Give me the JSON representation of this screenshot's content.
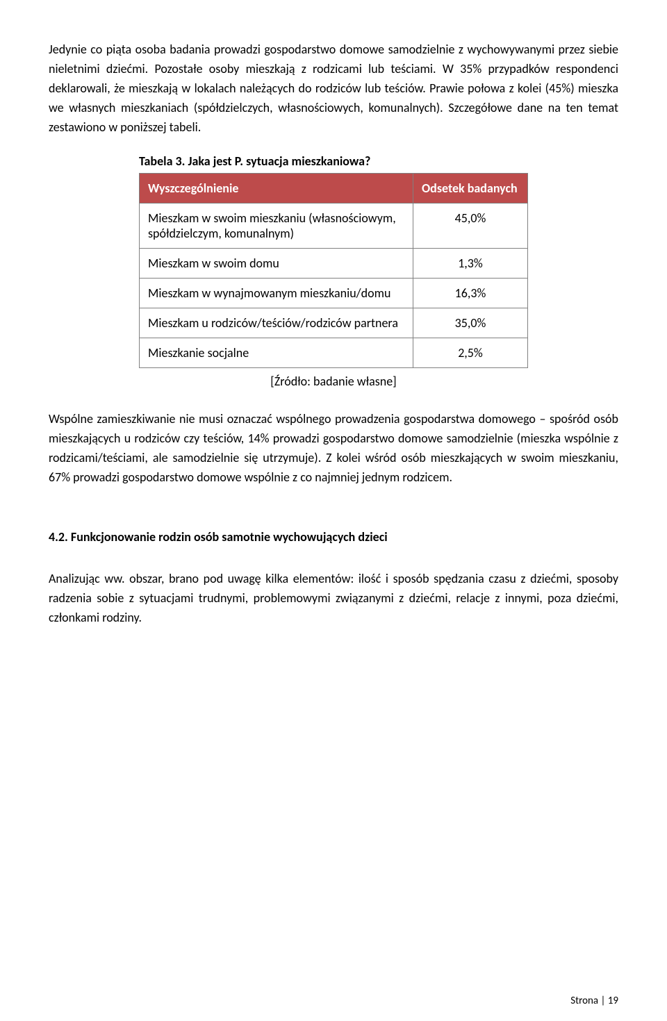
{
  "paragraph1": "Jedynie co piąta osoba badania prowadzi gospodarstwo domowe samodzielnie z wychowywanymi przez siebie nieletnimi dziećmi. Pozostałe osoby mieszkają z rodzicami lub teściami. W 35% przypadków respondenci deklarowali, że mieszkają w lokalach należących do rodziców lub teściów. Prawie połowa z kolei (45%) mieszka we własnych mieszkaniach (spółdzielczych, własnościowych, komunalnych). Szczegółowe dane na ten temat zestawiono w poniższej tabeli.",
  "tableTitle": "Tabela 3. Jaka jest P. sytuacja mieszkaniowa?",
  "header1": "Wyszczególnienie",
  "header2": "Odsetek badanych",
  "rows": [
    {
      "label": "Mieszkam w swoim mieszkaniu (własnościowym, spółdzielczym, komunalnym)",
      "value": "45,0%"
    },
    {
      "label": "Mieszkam w swoim domu",
      "value": "1,3%"
    },
    {
      "label": "Mieszkam w wynajmowanym mieszkaniu/domu",
      "value": "16,3%"
    },
    {
      "label": "Mieszkam u rodziców/teściów/rodziców partnera",
      "value": "35,0%"
    },
    {
      "label": "Mieszkanie socjalne",
      "value": "2,5%"
    }
  ],
  "source": "[Źródło: badanie własne]",
  "paragraph2": "Wspólne zamieszkiwanie nie musi oznaczać wspólnego prowadzenia gospodarstwa domowego – spośród osób mieszkających u rodziców czy teściów, 14% prowadzi gospodarstwo domowe samodzielnie (mieszka wspólnie z rodzicami/teściami, ale samodzielnie się utrzymuje). Z kolei wśród osób mieszkających w swoim mieszkaniu, 67% prowadzi gospodarstwo domowe wspólnie z co najmniej jednym rodzicem.",
  "sectionHeading": "4.2. Funkcjonowanie rodzin osób samotnie wychowujących dzieci",
  "paragraph3": "Analizując ww. obszar, brano pod uwagę kilka elementów: ilość i sposób spędzania czasu z dziećmi, sposoby radzenia sobie z sytuacjami trudnymi, problemowymi związanymi z dziećmi, relacje z innymi, poza dziećmi, członkami rodziny.",
  "footer": "Strona | 19",
  "colors": {
    "headerBg": "#bd4b4b",
    "headerText": "#ffffff",
    "border": "#808080"
  }
}
